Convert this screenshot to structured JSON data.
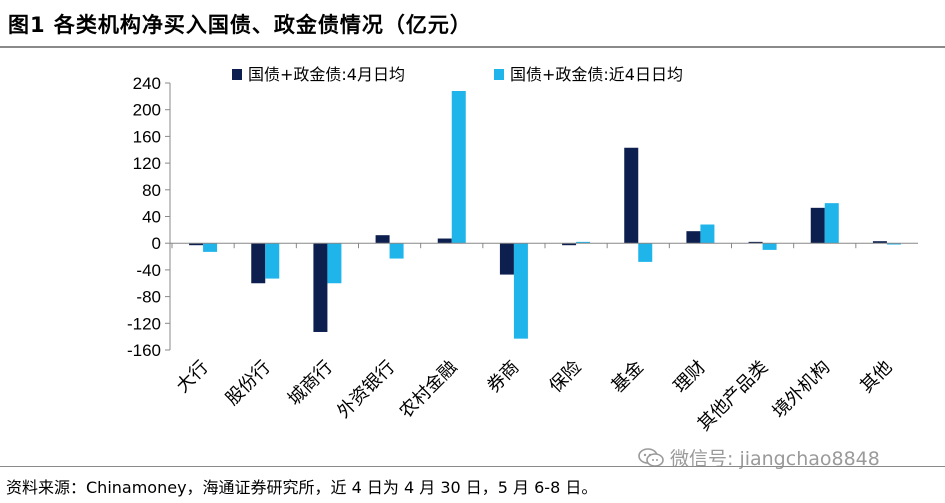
{
  "header": {
    "title": "图1  各类机构净买入国债、政金债情况（亿元）"
  },
  "footer": {
    "source": "资料来源：Chinamoney，海通证券研究所，近 4 日为 4 月 30 日，5 月 6-8 日。"
  },
  "watermark": {
    "text": "微信号: jiangchao8848"
  },
  "colors": {
    "series1": "#0c1f4f",
    "series2": "#1fb4ea",
    "axis": "#888888"
  },
  "chart_data": {
    "type": "bar",
    "title": "",
    "xlabel": "",
    "ylabel": "",
    "ylim": [
      -160,
      240
    ],
    "yticks": [
      240,
      200,
      160,
      120,
      80,
      40,
      0,
      -40,
      -80,
      -120,
      -160
    ],
    "grid": false,
    "legend_position": "top",
    "categories": [
      "大行",
      "股份行",
      "城商行",
      "外资银行",
      "农村金融",
      "券商",
      "保险",
      "基金",
      "理财",
      "其他产品类",
      "境外机构",
      "其他"
    ],
    "series": [
      {
        "name": "国债+政金债:4月日均",
        "values": [
          -3,
          -60,
          -133,
          12,
          7,
          -47,
          -3,
          143,
          18,
          2,
          53,
          3
        ]
      },
      {
        "name": "国债+政金债:近4日日均",
        "values": [
          -13,
          -53,
          -60,
          -23,
          228,
          -143,
          2,
          -28,
          28,
          -10,
          60,
          -2
        ]
      }
    ]
  }
}
